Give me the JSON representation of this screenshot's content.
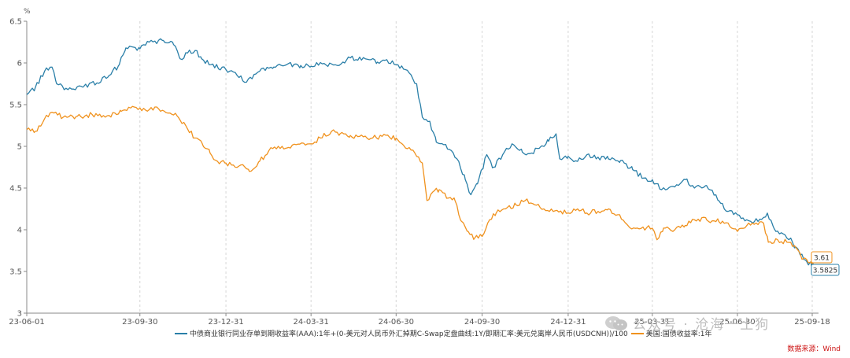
{
  "chart_data": {
    "type": "line",
    "unit_label": "%",
    "ylim": [
      3,
      6.5
    ],
    "y_ticks": [
      "6.5",
      "6",
      "5.5",
      "5",
      "4.5",
      "4",
      "3.5",
      "3"
    ],
    "x_ticks": [
      "23-06-01",
      "23-09-30",
      "23-12-31",
      "24-03-31",
      "24-06-30",
      "24-09-30",
      "24-12-31",
      "25-03-31",
      "25-06-30",
      "25-09-18"
    ],
    "x_range": [
      "2023-06-01",
      "2025-09-18"
    ],
    "grid": "vertical-dashed",
    "legend_position": "bottom",
    "series": [
      {
        "name": "中债商业银行同业存单到期收益率(AAA):1年+(0-美元对人民币外汇掉期C-Swap定盘曲线:1Y/即期汇率:美元兑离岸人民币(USDCNH))/100",
        "color": "#2a7fa8",
        "end_label": "3.5825",
        "points": [
          [
            "2023-06-01",
            5.62
          ],
          [
            "2023-06-10",
            5.7
          ],
          [
            "2023-06-20",
            5.9
          ],
          [
            "2023-06-28",
            5.95
          ],
          [
            "2023-07-03",
            5.75
          ],
          [
            "2023-07-15",
            5.68
          ],
          [
            "2023-08-01",
            5.72
          ],
          [
            "2023-08-15",
            5.76
          ],
          [
            "2023-08-28",
            5.85
          ],
          [
            "2023-09-08",
            5.98
          ],
          [
            "2023-09-15",
            6.18
          ],
          [
            "2023-09-30",
            6.17
          ],
          [
            "2023-10-10",
            6.25
          ],
          [
            "2023-10-25",
            6.27
          ],
          [
            "2023-11-05",
            6.22
          ],
          [
            "2023-11-12",
            6.05
          ],
          [
            "2023-11-20",
            6.12
          ],
          [
            "2023-11-28",
            6.15
          ],
          [
            "2023-12-05",
            6.05
          ],
          [
            "2023-12-15",
            5.98
          ],
          [
            "2023-12-31",
            5.92
          ],
          [
            "2024-01-12",
            5.85
          ],
          [
            "2024-01-22",
            5.77
          ],
          [
            "2024-02-05",
            5.9
          ],
          [
            "2024-02-20",
            5.95
          ],
          [
            "2024-03-05",
            5.98
          ],
          [
            "2024-03-20",
            5.97
          ],
          [
            "2024-03-31",
            5.96
          ],
          [
            "2024-04-12",
            5.99
          ],
          [
            "2024-04-28",
            5.97
          ],
          [
            "2024-05-12",
            6.06
          ],
          [
            "2024-05-28",
            6.05
          ],
          [
            "2024-06-10",
            6.01
          ],
          [
            "2024-06-20",
            6.04
          ],
          [
            "2024-06-30",
            5.98
          ],
          [
            "2024-07-10",
            5.92
          ],
          [
            "2024-07-22",
            5.75
          ],
          [
            "2024-07-28",
            5.35
          ],
          [
            "2024-08-05",
            5.3
          ],
          [
            "2024-08-12",
            5.05
          ],
          [
            "2024-08-20",
            5.02
          ],
          [
            "2024-08-28",
            4.95
          ],
          [
            "2024-09-05",
            4.82
          ],
          [
            "2024-09-12",
            4.6
          ],
          [
            "2024-09-18",
            4.42
          ],
          [
            "2024-09-25",
            4.55
          ],
          [
            "2024-10-05",
            4.9
          ],
          [
            "2024-10-12",
            4.75
          ],
          [
            "2024-10-22",
            4.9
          ],
          [
            "2024-11-01",
            5.03
          ],
          [
            "2024-11-12",
            4.93
          ],
          [
            "2024-11-22",
            4.92
          ],
          [
            "2024-12-01",
            4.99
          ],
          [
            "2024-12-10",
            5.06
          ],
          [
            "2024-12-18",
            5.15
          ],
          [
            "2024-12-22",
            4.85
          ],
          [
            "2024-12-31",
            4.88
          ],
          [
            "2025-01-10",
            4.82
          ],
          [
            "2025-01-20",
            4.9
          ],
          [
            "2025-02-01",
            4.87
          ],
          [
            "2025-02-12",
            4.85
          ],
          [
            "2025-02-25",
            4.83
          ],
          [
            "2025-03-10",
            4.72
          ],
          [
            "2025-03-22",
            4.62
          ],
          [
            "2025-03-31",
            4.6
          ],
          [
            "2025-04-10",
            4.48
          ],
          [
            "2025-04-22",
            4.52
          ],
          [
            "2025-05-05",
            4.6
          ],
          [
            "2025-05-15",
            4.5
          ],
          [
            "2025-05-28",
            4.53
          ],
          [
            "2025-06-10",
            4.35
          ],
          [
            "2025-06-20",
            4.22
          ],
          [
            "2025-06-30",
            4.18
          ],
          [
            "2025-07-10",
            4.12
          ],
          [
            "2025-07-22",
            4.1
          ],
          [
            "2025-08-01",
            4.2
          ],
          [
            "2025-08-08",
            4.02
          ],
          [
            "2025-08-18",
            3.95
          ],
          [
            "2025-08-28",
            3.85
          ],
          [
            "2025-09-05",
            3.7
          ],
          [
            "2025-09-12",
            3.62
          ],
          [
            "2025-09-18",
            3.5825
          ]
        ]
      },
      {
        "name": "美国:国债收益率:1年",
        "color": "#f0921e",
        "end_label": "3.61",
        "points": [
          [
            "2023-06-01",
            5.2
          ],
          [
            "2023-06-10",
            5.18
          ],
          [
            "2023-06-20",
            5.33
          ],
          [
            "2023-06-30",
            5.4
          ],
          [
            "2023-07-10",
            5.35
          ],
          [
            "2023-07-25",
            5.36
          ],
          [
            "2023-08-10",
            5.38
          ],
          [
            "2023-08-28",
            5.37
          ],
          [
            "2023-09-10",
            5.42
          ],
          [
            "2023-09-20",
            5.46
          ],
          [
            "2023-09-30",
            5.46
          ],
          [
            "2023-10-10",
            5.44
          ],
          [
            "2023-10-20",
            5.45
          ],
          [
            "2023-11-01",
            5.4
          ],
          [
            "2023-11-10",
            5.35
          ],
          [
            "2023-11-18",
            5.25
          ],
          [
            "2023-11-28",
            5.1
          ],
          [
            "2023-12-05",
            5.05
          ],
          [
            "2023-12-14",
            4.92
          ],
          [
            "2023-12-22",
            4.82
          ],
          [
            "2023-12-31",
            4.8
          ],
          [
            "2024-01-10",
            4.75
          ],
          [
            "2024-01-18",
            4.78
          ],
          [
            "2024-01-25",
            4.7
          ],
          [
            "2024-02-05",
            4.82
          ],
          [
            "2024-02-15",
            4.95
          ],
          [
            "2024-02-25",
            5.0
          ],
          [
            "2024-03-05",
            4.98
          ],
          [
            "2024-03-15",
            5.02
          ],
          [
            "2024-03-31",
            5.03
          ],
          [
            "2024-04-10",
            5.1
          ],
          [
            "2024-04-22",
            5.18
          ],
          [
            "2024-05-01",
            5.15
          ],
          [
            "2024-05-12",
            5.13
          ],
          [
            "2024-05-22",
            5.12
          ],
          [
            "2024-06-05",
            5.1
          ],
          [
            "2024-06-15",
            5.12
          ],
          [
            "2024-06-30",
            5.1
          ],
          [
            "2024-07-10",
            4.98
          ],
          [
            "2024-07-20",
            4.92
          ],
          [
            "2024-07-28",
            4.8
          ],
          [
            "2024-08-02",
            4.35
          ],
          [
            "2024-08-08",
            4.45
          ],
          [
            "2024-08-15",
            4.48
          ],
          [
            "2024-08-25",
            4.38
          ],
          [
            "2024-09-01",
            4.35
          ],
          [
            "2024-09-08",
            4.1
          ],
          [
            "2024-09-15",
            3.98
          ],
          [
            "2024-09-22",
            3.9
          ],
          [
            "2024-09-30",
            3.92
          ],
          [
            "2024-10-08",
            4.12
          ],
          [
            "2024-10-15",
            4.2
          ],
          [
            "2024-10-25",
            4.25
          ],
          [
            "2024-11-05",
            4.3
          ],
          [
            "2024-11-15",
            4.35
          ],
          [
            "2024-11-25",
            4.3
          ],
          [
            "2024-12-05",
            4.25
          ],
          [
            "2024-12-15",
            4.22
          ],
          [
            "2024-12-31",
            4.2
          ],
          [
            "2025-01-10",
            4.25
          ],
          [
            "2025-01-20",
            4.2
          ],
          [
            "2025-02-01",
            4.22
          ],
          [
            "2025-02-12",
            4.25
          ],
          [
            "2025-02-22",
            4.18
          ],
          [
            "2025-03-05",
            4.05
          ],
          [
            "2025-03-15",
            4.02
          ],
          [
            "2025-03-31",
            4.02
          ],
          [
            "2025-04-05",
            3.88
          ],
          [
            "2025-04-12",
            4.02
          ],
          [
            "2025-04-22",
            3.98
          ],
          [
            "2025-05-05",
            4.05
          ],
          [
            "2025-05-15",
            4.12
          ],
          [
            "2025-05-28",
            4.12
          ],
          [
            "2025-06-10",
            4.1
          ],
          [
            "2025-06-20",
            4.08
          ],
          [
            "2025-06-30",
            3.98
          ],
          [
            "2025-07-10",
            4.05
          ],
          [
            "2025-07-20",
            4.08
          ],
          [
            "2025-07-28",
            4.08
          ],
          [
            "2025-08-02",
            3.85
          ],
          [
            "2025-08-12",
            3.88
          ],
          [
            "2025-08-22",
            3.85
          ],
          [
            "2025-09-01",
            3.78
          ],
          [
            "2025-09-08",
            3.65
          ],
          [
            "2025-09-18",
            3.61
          ]
        ]
      }
    ]
  },
  "source_label": "数据来源：Wind",
  "watermark": {
    "text": "公众号 · 沧海一土狗",
    "icon": "wechat-icon"
  }
}
